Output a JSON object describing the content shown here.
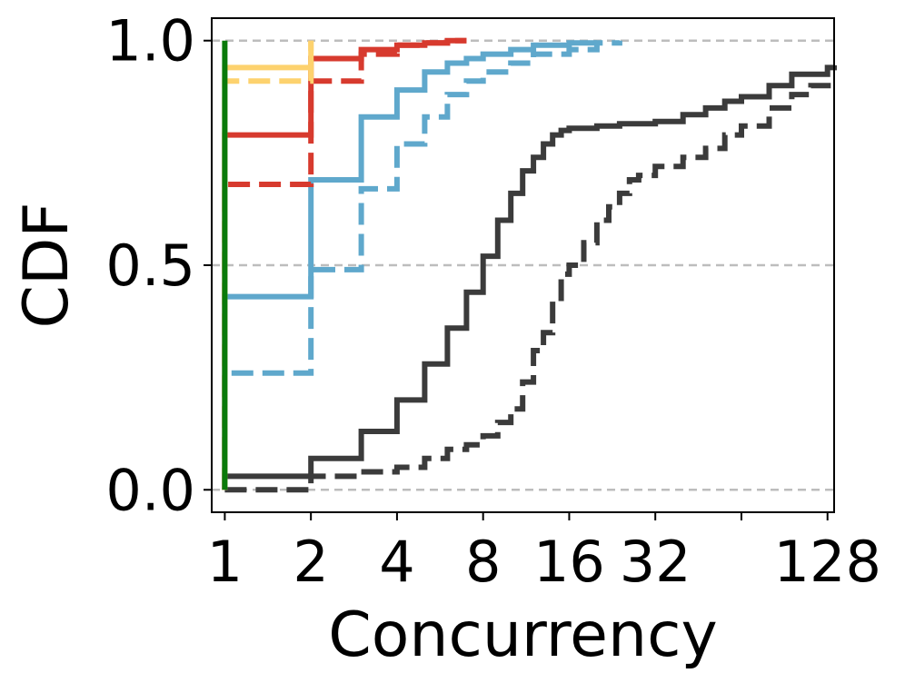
{
  "chart_data": {
    "type": "line",
    "step": true,
    "title": "",
    "xlabel": "Concurrency",
    "ylabel": "CDF",
    "x_scale": "log2",
    "xlim": [
      0.9,
      135
    ],
    "ylim": [
      -0.05,
      1.05
    ],
    "x_ticks": [
      {
        "value": 1,
        "label": "1"
      },
      {
        "value": 2,
        "label": "2"
      },
      {
        "value": 4,
        "label": "4"
      },
      {
        "value": 8,
        "label": "8"
      },
      {
        "value": 16,
        "label": "16"
      },
      {
        "value": 32,
        "label": "32"
      },
      {
        "value": 64,
        "label": ""
      },
      {
        "value": 128,
        "label": "128"
      }
    ],
    "y_ticks": [
      {
        "value": 0.0,
        "label": "0.0"
      },
      {
        "value": 0.5,
        "label": "0.5"
      },
      {
        "value": 1.0,
        "label": "1.0"
      }
    ],
    "grid": "horizontal dashed",
    "series": [
      {
        "color": "#3b3b3b",
        "dash": "solid",
        "x": [
          1,
          2,
          3,
          4,
          5,
          6,
          7,
          8,
          9,
          10,
          11,
          12,
          13,
          14,
          15,
          16,
          20,
          24,
          32,
          40,
          48,
          56,
          64,
          80,
          96,
          128,
          135
        ],
        "y": [
          0.03,
          0.07,
          0.13,
          0.2,
          0.28,
          0.36,
          0.44,
          0.52,
          0.6,
          0.66,
          0.71,
          0.74,
          0.77,
          0.79,
          0.8,
          0.805,
          0.81,
          0.815,
          0.82,
          0.835,
          0.85,
          0.865,
          0.875,
          0.9,
          0.925,
          0.94,
          0.945
        ]
      },
      {
        "color": "#3b3b3b",
        "dash": "dashed",
        "x": [
          1,
          2,
          3,
          4,
          5,
          6,
          7,
          8,
          9,
          10,
          11,
          12,
          13,
          14,
          15,
          16,
          18,
          20,
          22,
          24,
          26,
          28,
          32,
          40,
          48,
          56,
          64,
          80,
          96,
          112,
          135
        ],
        "y": [
          0.0,
          0.03,
          0.04,
          0.05,
          0.07,
          0.09,
          0.1,
          0.12,
          0.15,
          0.18,
          0.24,
          0.31,
          0.35,
          0.42,
          0.48,
          0.5,
          0.55,
          0.6,
          0.63,
          0.66,
          0.69,
          0.7,
          0.72,
          0.74,
          0.76,
          0.79,
          0.81,
          0.85,
          0.88,
          0.9,
          0.91
        ]
      },
      {
        "color": "#5fa8cc",
        "dash": "solid",
        "x": [
          1,
          2,
          3,
          4,
          5,
          6,
          7,
          8,
          10,
          12,
          16,
          20
        ],
        "y": [
          0.43,
          0.69,
          0.83,
          0.89,
          0.93,
          0.95,
          0.96,
          0.97,
          0.98,
          0.99,
          0.995,
          1.0
        ]
      },
      {
        "color": "#5fa8cc",
        "dash": "dashed",
        "x": [
          1,
          2,
          3,
          4,
          5,
          6,
          7,
          8,
          10,
          12,
          16,
          20,
          24
        ],
        "y": [
          0.26,
          0.49,
          0.67,
          0.77,
          0.83,
          0.88,
          0.91,
          0.93,
          0.95,
          0.97,
          0.98,
          0.995,
          1.0
        ]
      },
      {
        "color": "#d73a2e",
        "dash": "solid",
        "x": [
          1,
          2,
          3,
          4,
          5,
          6,
          7
        ],
        "y": [
          0.79,
          0.96,
          0.98,
          0.99,
          0.995,
          1.0,
          1.0
        ]
      },
      {
        "color": "#d73a2e",
        "dash": "dashed",
        "x": [
          1,
          2,
          3,
          4,
          5,
          6,
          7
        ],
        "y": [
          0.68,
          0.91,
          0.97,
          0.99,
          0.995,
          1.0,
          1.0
        ]
      },
      {
        "color": "#fdd26e",
        "dash": "solid",
        "x": [
          1,
          2
        ],
        "y": [
          0.94,
          1.0
        ]
      },
      {
        "color": "#fdd26e",
        "dash": "dashed",
        "x": [
          1,
          2
        ],
        "y": [
          0.91,
          1.0
        ]
      },
      {
        "color": "#0a7a0a",
        "dash": "solid",
        "x": [
          1
        ],
        "y": [
          1.0
        ]
      }
    ]
  }
}
